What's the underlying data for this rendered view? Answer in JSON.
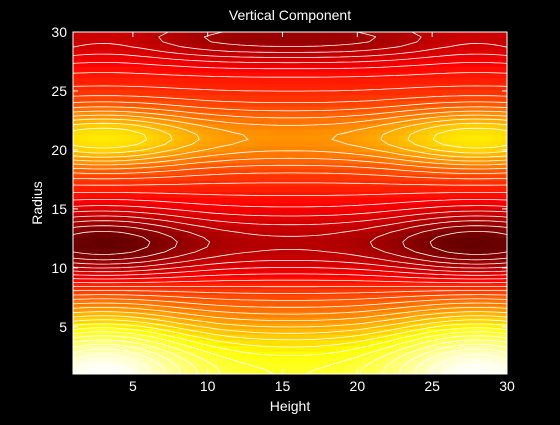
{
  "chart_data": {
    "type": "heatmap",
    "title": "Vertical Component",
    "xlabel": "Height",
    "ylabel": "Radius",
    "xlim": [
      1,
      30
    ],
    "ylim": [
      1,
      30
    ],
    "xticks": [
      5,
      10,
      15,
      20,
      25,
      30
    ],
    "yticks": [
      5,
      10,
      15,
      20,
      25,
      30
    ],
    "colormap": "hot",
    "contour_color": "#ffffff",
    "grid": false,
    "legend": "none",
    "notable_regions": [
      {
        "x": 3,
        "y": 21,
        "level": "local max (orange)"
      },
      {
        "x": 28,
        "y": 21,
        "level": "local max (orange)"
      },
      {
        "x": 3,
        "y": 12,
        "level": "local min (dark)"
      },
      {
        "x": 28,
        "y": 12,
        "level": "local min (dark)"
      },
      {
        "x": 3,
        "y": 1.5,
        "level": "global max (white)"
      },
      {
        "x": 28,
        "y": 1.5,
        "level": "global max (white)"
      },
      {
        "x": 15,
        "y": 29,
        "level": "upper dark band"
      }
    ]
  }
}
